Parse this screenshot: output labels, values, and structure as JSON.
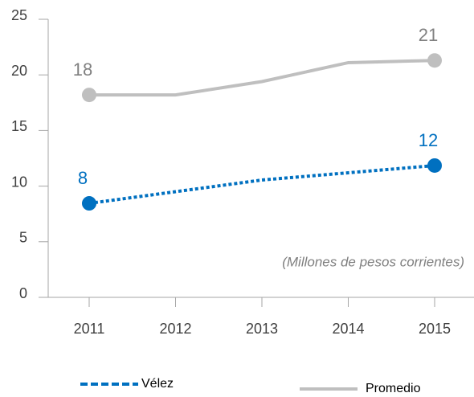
{
  "chart_data": {
    "type": "line",
    "categories": [
      "2011",
      "2012",
      "2013",
      "2014",
      "2015"
    ],
    "series": [
      {
        "name": "Vélez",
        "color": "#0070c0",
        "style": "dotted",
        "values": [
          8.45,
          9.5,
          10.55,
          11.2,
          11.85
        ],
        "value_labels": [
          "8",
          null,
          null,
          null,
          "12"
        ]
      },
      {
        "name": "Promedio",
        "color": "#bfbfbf",
        "style": "solid",
        "values": [
          18.2,
          18.2,
          19.4,
          21.1,
          21.3
        ],
        "value_labels": [
          "18",
          null,
          null,
          null,
          "21"
        ]
      }
    ],
    "ylim": [
      0,
      25
    ],
    "yticks": [
      0,
      5,
      10,
      15,
      20,
      25
    ],
    "annotation": "(Millones de pesos corrientes)"
  }
}
